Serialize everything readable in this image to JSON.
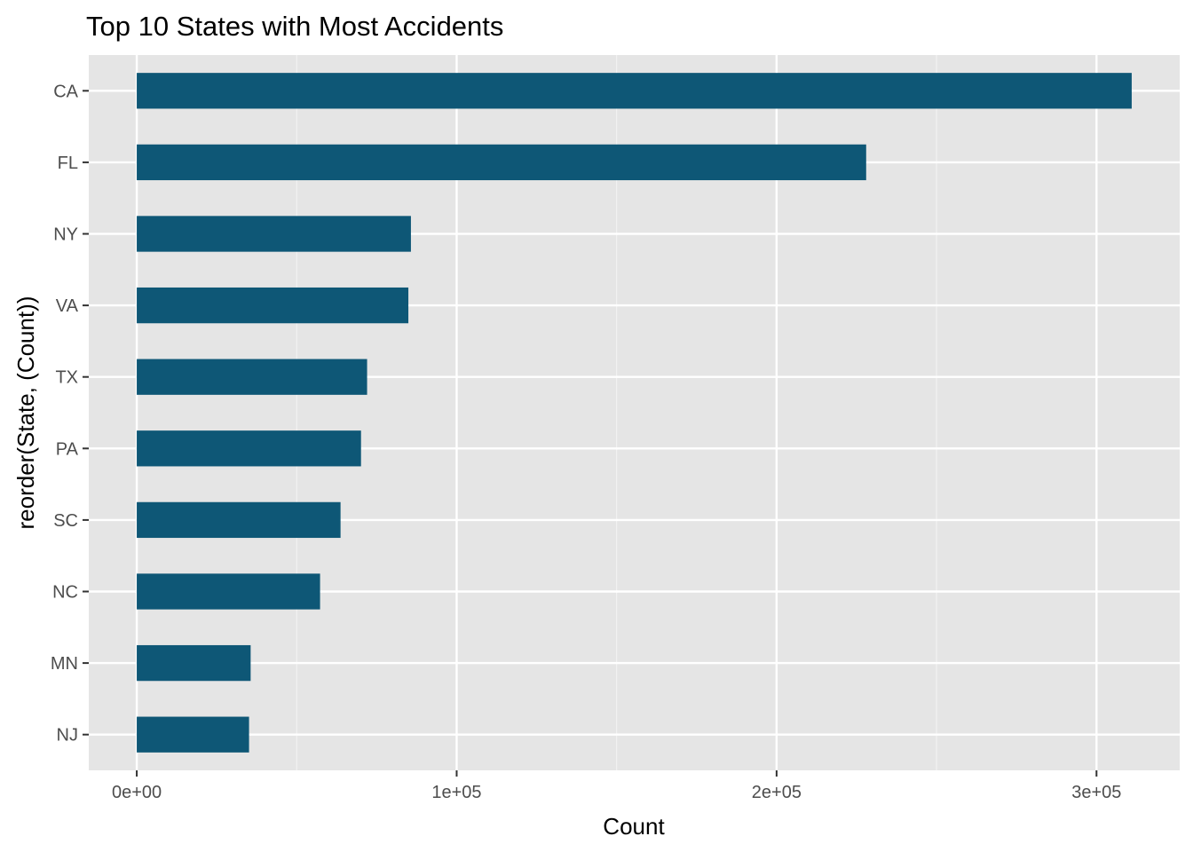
{
  "chart_data": {
    "type": "bar",
    "orientation": "horizontal",
    "title": "Top 10 States with Most Accidents",
    "xlabel": "Count",
    "ylabel": "reorder(State, (Count))",
    "categories": [
      "CA",
      "FL",
      "NY",
      "VA",
      "TX",
      "PA",
      "SC",
      "NC",
      "MN",
      "NJ"
    ],
    "values": [
      311000,
      228000,
      85700,
      84900,
      72000,
      70100,
      63700,
      57300,
      35600,
      35100
    ],
    "xlim": [
      -15000,
      326000
    ],
    "xticks": [
      0,
      100000,
      200000,
      300000
    ],
    "xtick_labels": [
      "0e+00",
      "1e+05",
      "2e+05",
      "3e+05"
    ],
    "x_minor_ticks": [
      50000,
      150000,
      250000
    ],
    "grid": true,
    "legend": "none",
    "colors": {
      "bar": "#0e5776",
      "panel": "#e5e5e5",
      "grid_major": "#ffffff",
      "grid_minor": "#f2f2f2"
    }
  }
}
